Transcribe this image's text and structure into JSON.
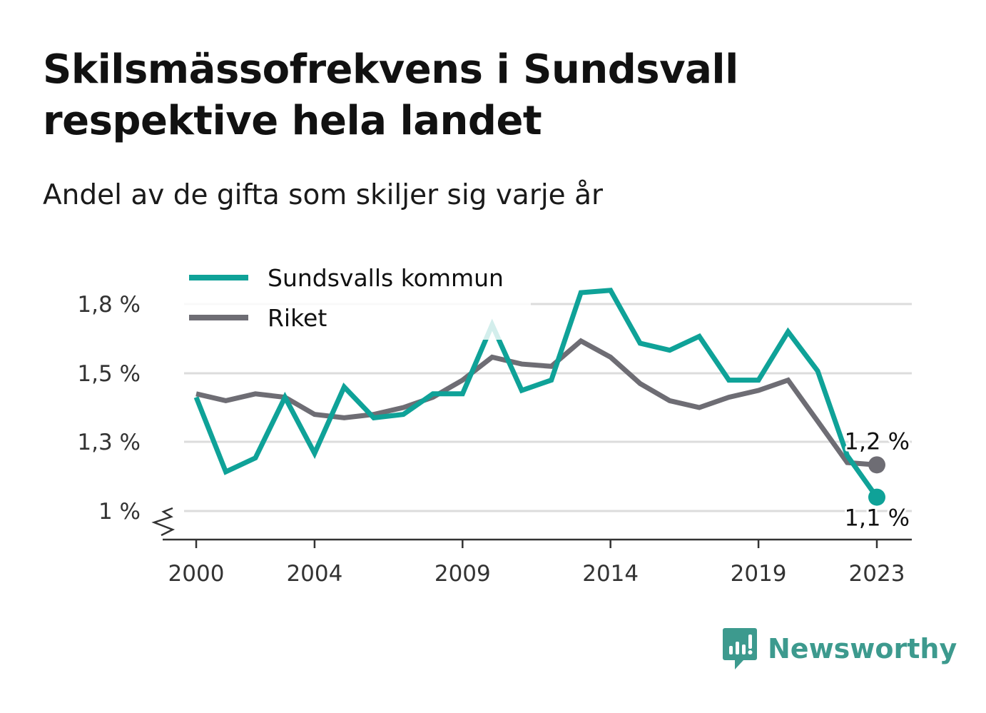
{
  "header": {
    "title": "Skilsmässofrekvens i Sundsvall respektive hela landet",
    "subtitle": "Andel av de gifta som skiljer sig varje år"
  },
  "brand": {
    "name": "Newsworthy",
    "icon": "newsworthy-logo-icon",
    "color": "#3d9a8e"
  },
  "colors": {
    "sundsvall": "#0fa298",
    "riket": "#6e6d74",
    "grid": "#dcdcdc",
    "axis": "#333333"
  },
  "chart_data": {
    "type": "line",
    "x": [
      2000,
      2001,
      2002,
      2003,
      2004,
      2005,
      2006,
      2007,
      2008,
      2009,
      2010,
      2011,
      2012,
      2013,
      2014,
      2015,
      2016,
      2017,
      2018,
      2019,
      2020,
      2021,
      2022,
      2023
    ],
    "x_ticks": [
      "2000",
      "2004",
      "2009",
      "2014",
      "2019",
      "2023"
    ],
    "y_ticks": [
      {
        "value": 1.8,
        "label": "1,8 %"
      },
      {
        "value": 1.5,
        "label": "1,5 %"
      },
      {
        "value": 1.3,
        "label": "1,3 %"
      },
      {
        "value": 1.0,
        "label": "1 %"
      }
    ],
    "y_axis_break": true,
    "grid": true,
    "legend_position": "top-left",
    "series": [
      {
        "name": "Sundsvalls kommun",
        "color": "#0fa298",
        "values": [
          1.43,
          1.17,
          1.23,
          1.43,
          1.25,
          1.46,
          1.37,
          1.38,
          1.44,
          1.44,
          1.71,
          1.45,
          1.48,
          1.85,
          1.86,
          1.63,
          1.6,
          1.66,
          1.48,
          1.48,
          1.68,
          1.51,
          1.24,
          1.06
        ],
        "end_label": "1,1 %"
      },
      {
        "name": "Riket",
        "color": "#6e6d74",
        "values": [
          1.44,
          1.42,
          1.44,
          1.43,
          1.38,
          1.37,
          1.38,
          1.4,
          1.43,
          1.48,
          1.57,
          1.54,
          1.53,
          1.64,
          1.57,
          1.47,
          1.42,
          1.4,
          1.43,
          1.45,
          1.48,
          1.36,
          1.21,
          1.2
        ],
        "end_label": "1,2 %"
      }
    ]
  }
}
